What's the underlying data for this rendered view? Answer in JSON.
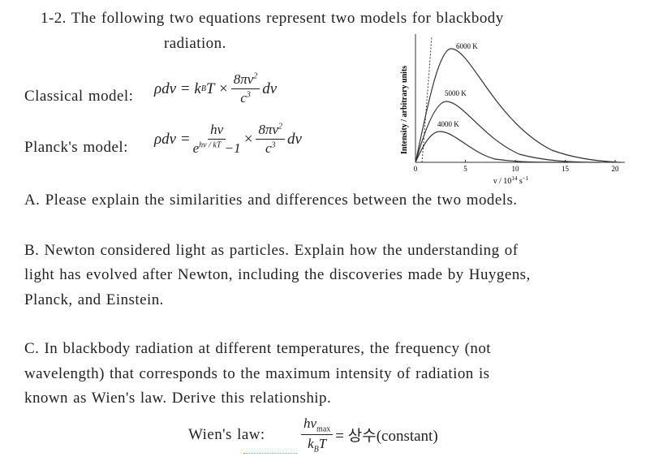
{
  "intro": [
    "1-2. The following two equations represent two models for blackbody",
    "radiation."
  ],
  "classical": {
    "label": "Classical model:",
    "lhs": "ρdν = k",
    "lhs_sub": "B",
    "lhs_rest": "T ×",
    "num": "8πν",
    "num_sup": "2",
    "den": "c",
    "den_sup": "3",
    "tail": "dν"
  },
  "planck": {
    "label": "Planck's model:",
    "lhs": "ρdν =",
    "f1_num": "hν",
    "f1_den": "e",
    "f1_den_sup": "hν / kT",
    "f1_den_rest": "−1",
    "times": "×",
    "f2_num": "8πν",
    "f2_num_sup": "2",
    "f2_den": "c",
    "f2_den_sup": "3",
    "tail": "dν"
  },
  "figure": {
    "y_label": "Intensity / arbitrary units",
    "x_label": "ν / 10",
    "x_label_sup": "14",
    "x_label_unit": " s",
    "x_label_unit_sup": "−1",
    "xticks": [
      0,
      5,
      10,
      15,
      20
    ],
    "curve_labels": [
      "6000 K",
      "5000 K",
      "4000 K"
    ]
  },
  "question_a": [
    "A. Please explain the similarities and differences between the two models."
  ],
  "question_b": [
    "B. Newton considered light as particles. Explain how the understanding of",
    "light has evolved after Newton, including the discoveries made by Huygens,",
    "Planck, and Einstein."
  ],
  "question_c": [
    "C. In blackbody radiation at different temperatures, the frequency (not",
    "wavelength) that corresponds to the maximum intensity of radiation is",
    "known as Wien's law. Derive this relationship."
  ],
  "wien": {
    "label": "Wien's law:",
    "num": "hν",
    "num_sub": "max",
    "den": "k",
    "den_sub": "B",
    "den_rest": "T",
    "rhs": "= 상수(constant)"
  }
}
